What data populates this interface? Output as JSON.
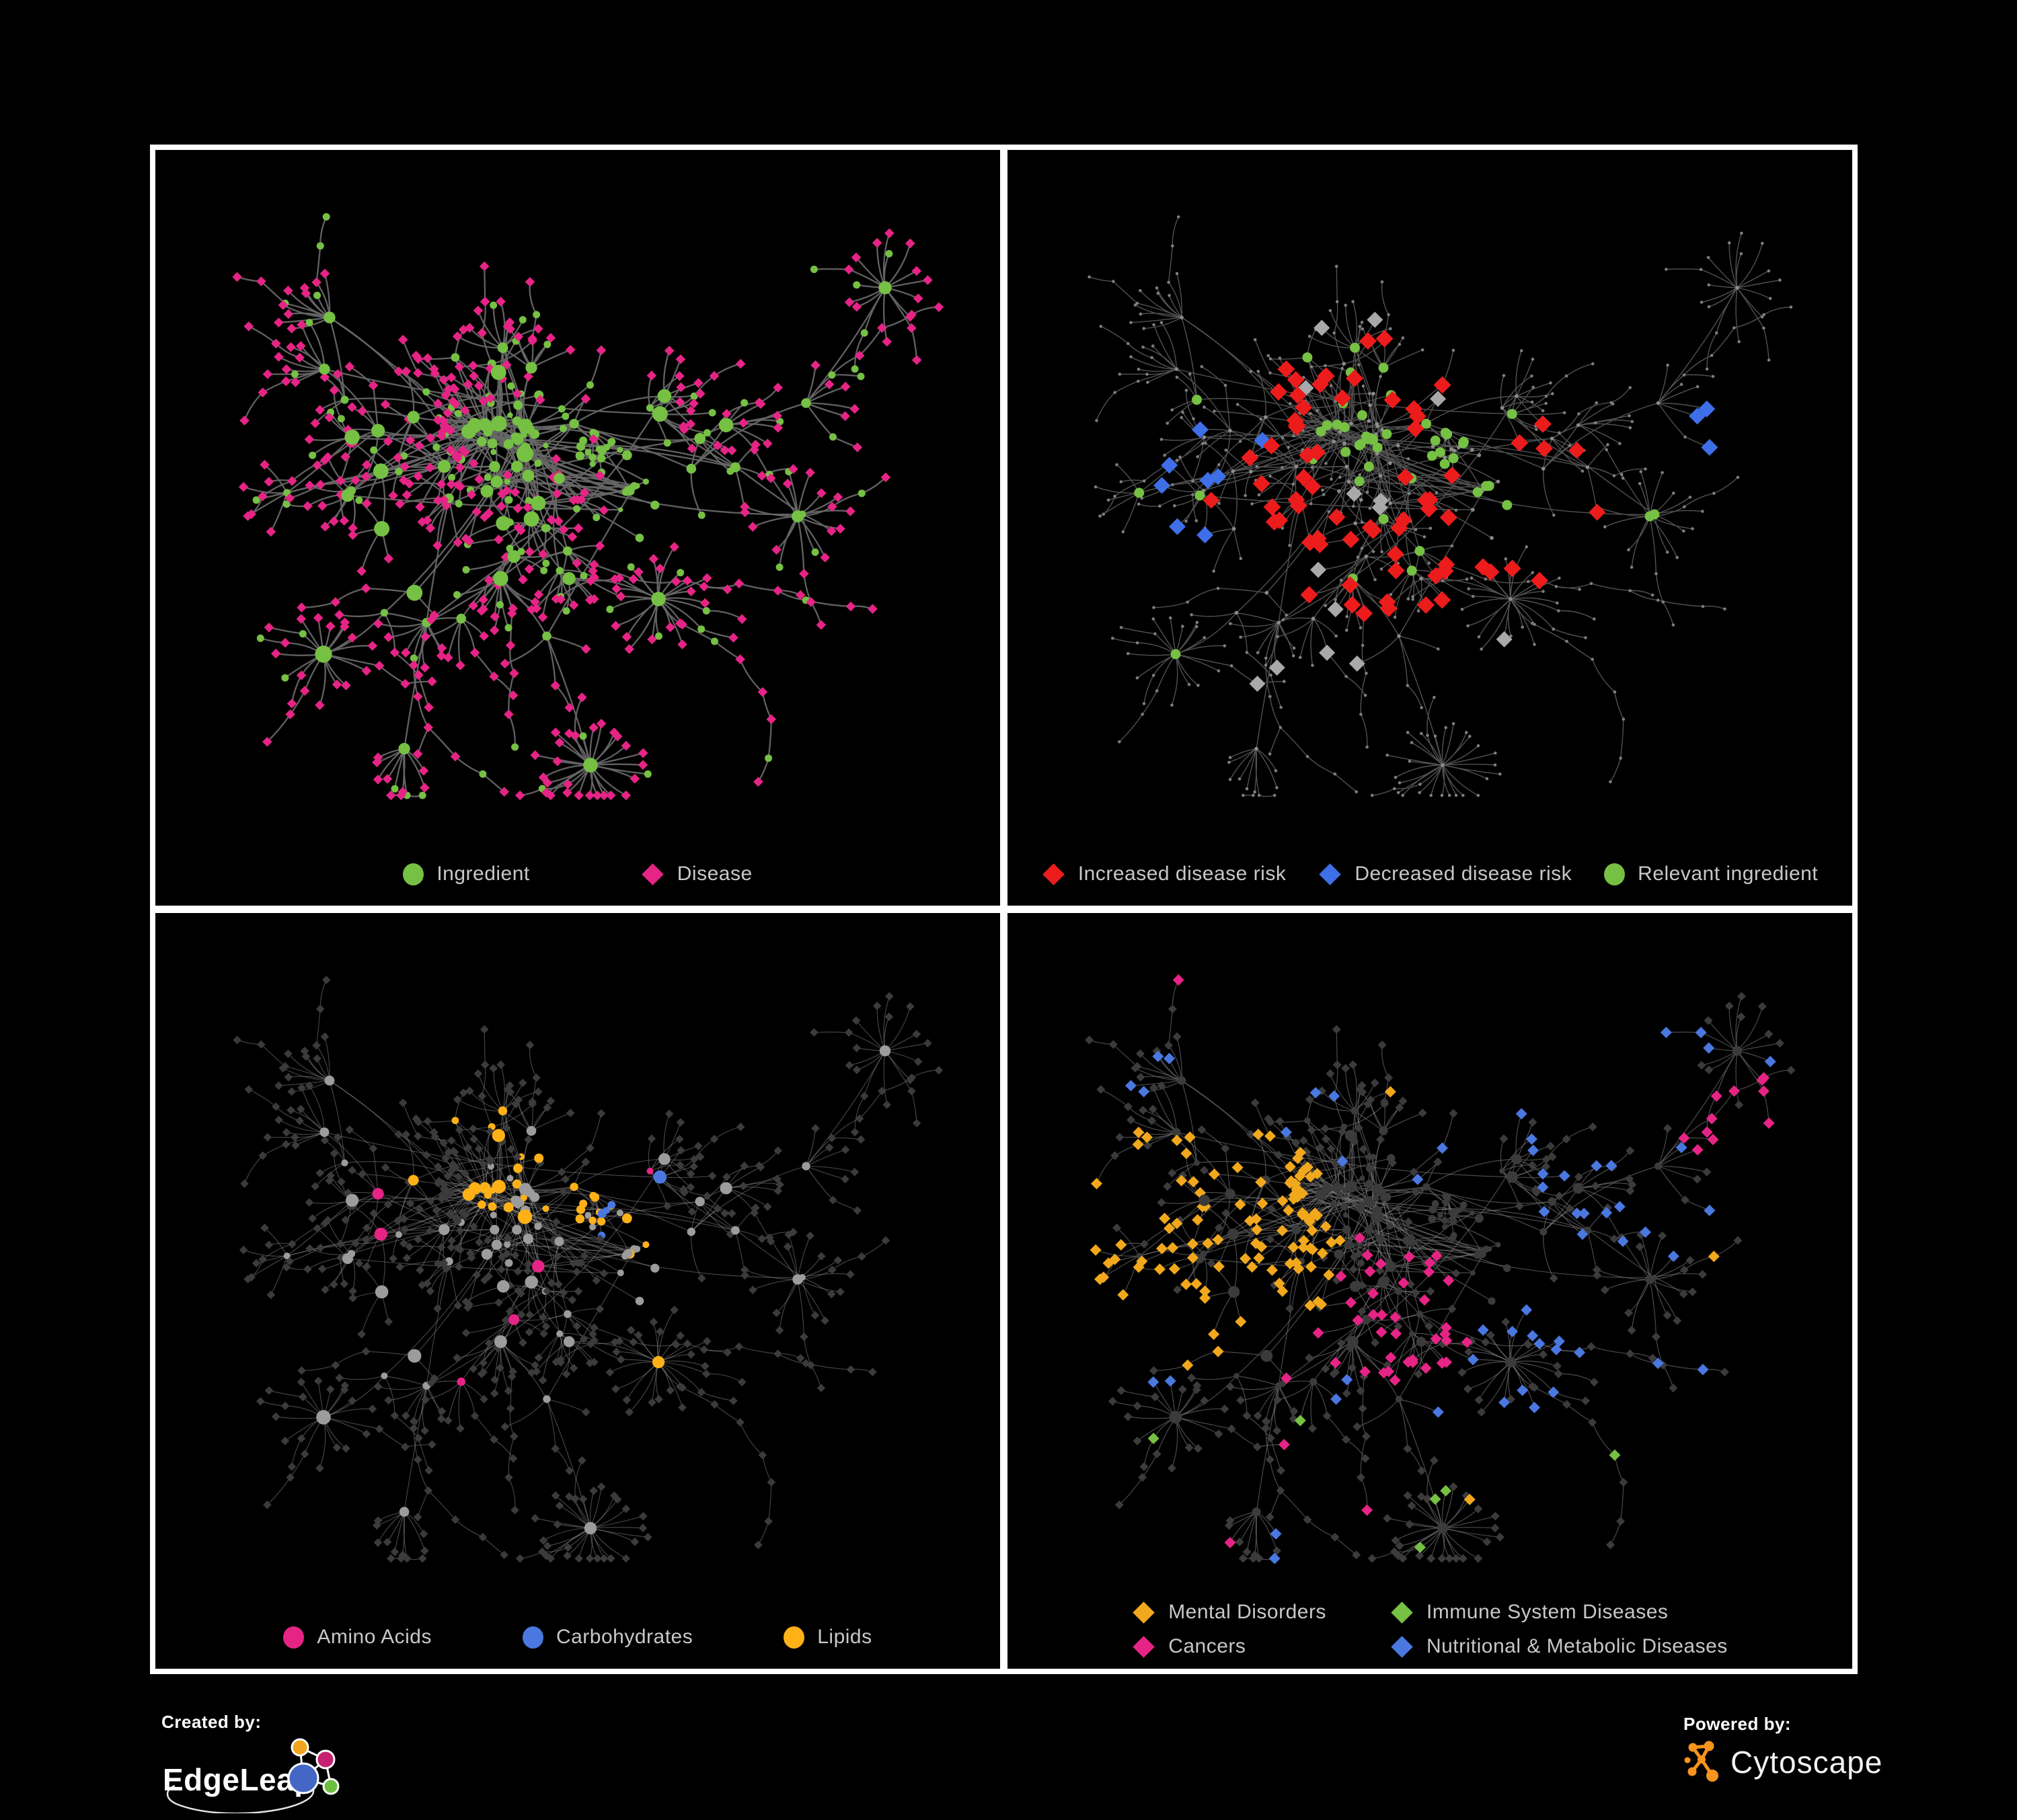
{
  "branding": {
    "created_by_label": "Created by:",
    "created_by_name": "EdgeLeap",
    "powered_by_label": "Powered by:",
    "powered_by_name": "Cytoscape"
  },
  "palette": {
    "page_background": "#000000",
    "frame": "#FFFFFF",
    "legend_text": "#C8C8C8",
    "edge_panel1": "#666666",
    "edge_panel2": "#515151",
    "edge_panel3": "#8F8F8F",
    "edge_panel4": "#7C7C7C",
    "node_tiny_gray": "#7E7E7E",
    "node_small_gray": "#8C8C8C",
    "node_gray_diamond": "#A9A9A9",
    "node_light_gray": "#9C9C9C",
    "node_dim_dark": "#3B3B3B",
    "edgeleap_orange": "#F2A41C",
    "edgeleap_magenta": "#C72070",
    "edgeleap_blue": "#4467C6",
    "edgeleap_green": "#6CBF3E",
    "cytoscape_orange": "#F7941E"
  },
  "panels": [
    {
      "legend": [
        {
          "label": "Ingredient",
          "shape": "circle",
          "color": "#76C043"
        },
        {
          "label": "Disease",
          "shape": "diamond",
          "color": "#E62486"
        }
      ]
    },
    {
      "legend": [
        {
          "label": "Increased disease risk",
          "shape": "diamond",
          "color": "#ED1C1C"
        },
        {
          "label": "Decreased disease risk",
          "shape": "diamond",
          "color": "#3E6FE8"
        },
        {
          "label": "Relevant ingredient",
          "shape": "circle",
          "color": "#76C043"
        }
      ]
    },
    {
      "legend": [
        {
          "label": "Amino Acids",
          "shape": "circle",
          "color": "#E62486"
        },
        {
          "label": "Carbohydrates",
          "shape": "circle",
          "color": "#4A78E0"
        },
        {
          "label": "Lipids",
          "shape": "circle",
          "color": "#FFB117"
        }
      ]
    },
    {
      "legend": [
        {
          "label": "Mental Disorders",
          "shape": "diamond",
          "color": "#F2A81D"
        },
        {
          "label": "Immune System Diseases",
          "shape": "diamond",
          "color": "#76C043"
        },
        {
          "label": "Cancers",
          "shape": "diamond",
          "color": "#E62486"
        },
        {
          "label": "Nutritional & Metabolic Diseases",
          "shape": "diamond",
          "color": "#4A78E0"
        }
      ]
    }
  ]
}
